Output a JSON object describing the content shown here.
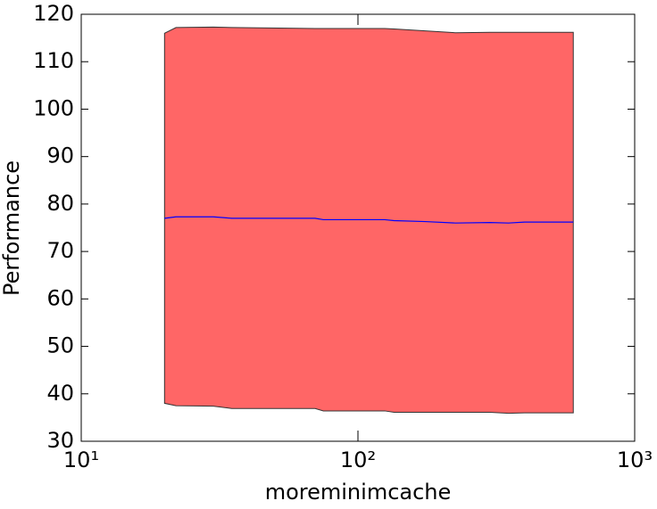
{
  "chart_data": {
    "type": "line",
    "xlabel": "moreminimcache",
    "ylabel": "Performance",
    "xscale": "log",
    "xlim": [
      10,
      1000
    ],
    "xticks": [
      {
        "value": 10,
        "label": "10¹"
      },
      {
        "value": 100,
        "label": "10²"
      },
      {
        "value": 1000,
        "label": "10³"
      }
    ],
    "ylim": [
      30,
      120
    ],
    "yticks": [
      30,
      40,
      50,
      60,
      70,
      80,
      90,
      100,
      110,
      120
    ],
    "x": [
      20,
      22,
      30,
      35,
      70,
      75,
      125,
      135,
      175,
      225,
      300,
      350,
      400,
      600
    ],
    "series": [
      {
        "color": "#0000ff",
        "band_color": "#ff6666",
        "values": [
          77,
          77.3,
          77.3,
          77,
          77,
          76.7,
          76.7,
          76.5,
          76.3,
          76,
          76.1,
          76,
          76.2,
          76.2
        ],
        "upper": [
          116,
          117.2,
          117.3,
          117.2,
          117,
          117,
          117,
          116.9,
          116.5,
          116.1,
          116.2,
          116.2,
          116.2,
          116.2
        ],
        "lower": [
          38,
          37.5,
          37.4,
          36.9,
          36.9,
          36.4,
          36.4,
          36.1,
          36.1,
          36.1,
          36.1,
          35.9,
          36,
          36
        ]
      }
    ]
  }
}
